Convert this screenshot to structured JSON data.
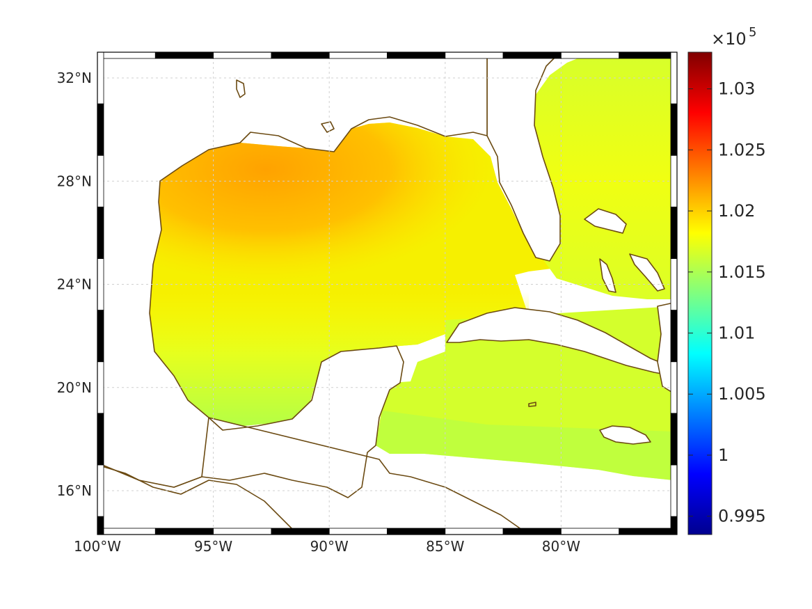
{
  "chart_data": {
    "type": "heatmap",
    "title": "",
    "xlabel": "",
    "ylabel": "",
    "xlim": [
      -100,
      -75
    ],
    "ylim": [
      14.3,
      33
    ],
    "x_ticks": [
      -100,
      -95,
      -90,
      -85,
      -80
    ],
    "x_tick_labels": [
      "100°W",
      "95°W",
      "90°W",
      "85°W",
      "80°W"
    ],
    "y_ticks": [
      16,
      20,
      24,
      28,
      32
    ],
    "y_tick_labels": [
      "16°N",
      "20°N",
      "24°N",
      "28°N",
      "32°N"
    ],
    "grid": true,
    "colormap": "jet",
    "colorbar": {
      "range": [
        0.9935,
        1.033
      ],
      "ticks": [
        0.995,
        1,
        1.005,
        1.01,
        1.015,
        1.02,
        1.025,
        1.03
      ],
      "tick_labels": [
        "0.995",
        "1",
        "1.005",
        "1.01",
        "1.015",
        "1.02",
        "1.025",
        "1.03"
      ],
      "exponent_base": "×10",
      "exponent_power": "5",
      "location": "right"
    },
    "field": {
      "description_values": [
        {
          "lon": -92,
          "lat": 28,
          "value": 1.021
        },
        {
          "lon": -90,
          "lat": 26,
          "value": 1.0205
        },
        {
          "lon": -95,
          "lat": 24,
          "value": 1.0195
        },
        {
          "lon": -88,
          "lat": 23,
          "value": 1.0185
        },
        {
          "lon": -78,
          "lat": 30,
          "value": 1.018
        },
        {
          "lon": -85,
          "lat": 19,
          "value": 1.016
        },
        {
          "lon": -80,
          "lat": 17,
          "value": 1.0155
        }
      ]
    }
  },
  "colors": {
    "coastline": "#6b4a12",
    "frame_dark": "#000000",
    "frame_light": "#ffffff"
  }
}
